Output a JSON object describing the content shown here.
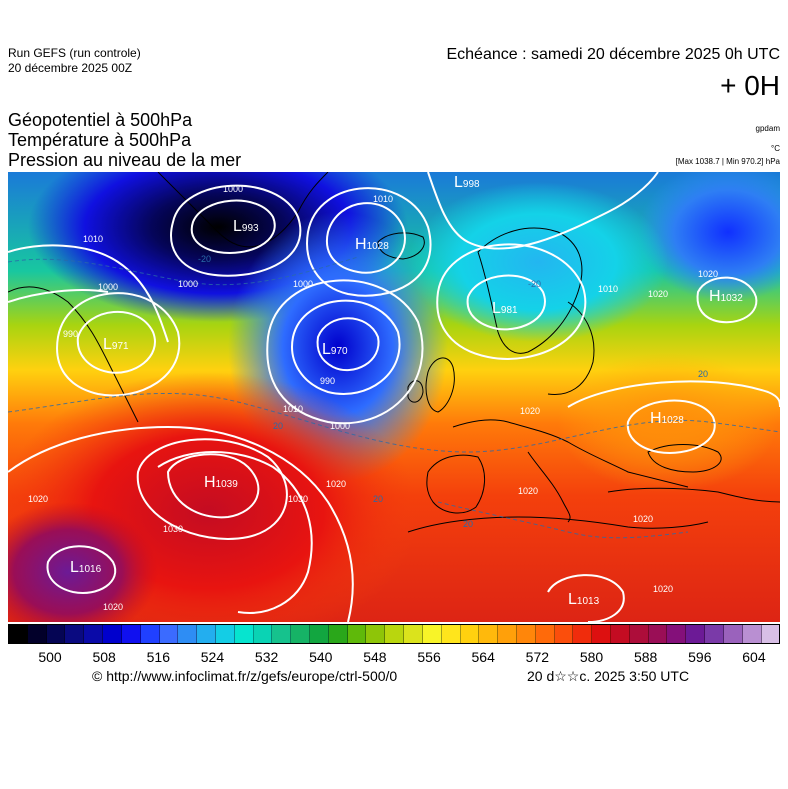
{
  "header": {
    "run": "Run GEFS (run controle)",
    "run_date": "20 décembre 2025 00Z",
    "echeance": "Echéance : samedi 20 décembre 2025 0h UTC",
    "lead": "+ 0H"
  },
  "params": {
    "line1": "Géopotentiel à 500hPa",
    "line2": "Température à 500hPa",
    "line3": "Pression au niveau de la mer"
  },
  "units": {
    "geo": "gpdam",
    "temp": "°C",
    "pressure": "[Max 1038.7 | Min 970.2] hPa"
  },
  "colorbar": {
    "colors": [
      "#000000",
      "#02002a",
      "#050554",
      "#0a0a80",
      "#0a0aa8",
      "#0000cd",
      "#1010f0",
      "#2040ff",
      "#3b6bff",
      "#2e8df4",
      "#23aeef",
      "#14cde5",
      "#06e4cf",
      "#0ad3b4",
      "#16c28d",
      "#16b366",
      "#12a640",
      "#2aa71a",
      "#5fb90a",
      "#8ec508",
      "#b9d60e",
      "#dbe31c",
      "#f8f428",
      "#ffe51c",
      "#ffd10f",
      "#ffb90c",
      "#ffa00a",
      "#ff860a",
      "#ff6a0a",
      "#fb4e0c",
      "#f02c0c",
      "#dd1010",
      "#c40c22",
      "#ad0d3a",
      "#9a0e56",
      "#84107a",
      "#6c1a96",
      "#7a3aa8",
      "#9a62bc",
      "#b98fd2",
      "#d8bfe6"
    ],
    "ticks": [
      "500",
      "508",
      "516",
      "524",
      "532",
      "540",
      "548",
      "556",
      "564",
      "572",
      "580",
      "588",
      "596",
      "604"
    ]
  },
  "map_labels": {
    "highs": [
      {
        "id": "h1",
        "text": "H",
        "value": "1028"
      },
      {
        "id": "h2",
        "text": "H",
        "value": "1032"
      },
      {
        "id": "h3",
        "text": "H",
        "value": "1039"
      },
      {
        "id": "h4",
        "text": "H",
        "value": "1028"
      }
    ],
    "lows": [
      {
        "id": "l1",
        "text": "L",
        "value": "993"
      },
      {
        "id": "l2",
        "text": "L",
        "value": "998"
      },
      {
        "id": "l3",
        "text": "L",
        "value": "971"
      },
      {
        "id": "l4",
        "text": "L",
        "value": "970"
      },
      {
        "id": "l5",
        "text": "L",
        "value": "981"
      },
      {
        "id": "l6",
        "text": "L",
        "value": "1016"
      },
      {
        "id": "l7",
        "text": "L",
        "value": "1013"
      }
    ],
    "isobars": [
      "1000",
      "1010",
      "1000",
      "1000",
      "990",
      "1000",
      "990",
      "1010",
      "1000",
      "1010",
      "1020",
      "1010",
      "1020",
      "1020",
      "1020",
      "1030",
      "1020",
      "1020",
      "1020",
      "1030",
      "1020",
      "1020"
    ],
    "isotherms": [
      "20",
      "20",
      "20",
      "20",
      "-20",
      "-20"
    ]
  },
  "footer": {
    "credit": "© http://www.infoclimat.fr/z/gefs/europe/ctrl-500/0",
    "timestamp": "20 d☆☆c. 2025  3:50 UTC"
  }
}
